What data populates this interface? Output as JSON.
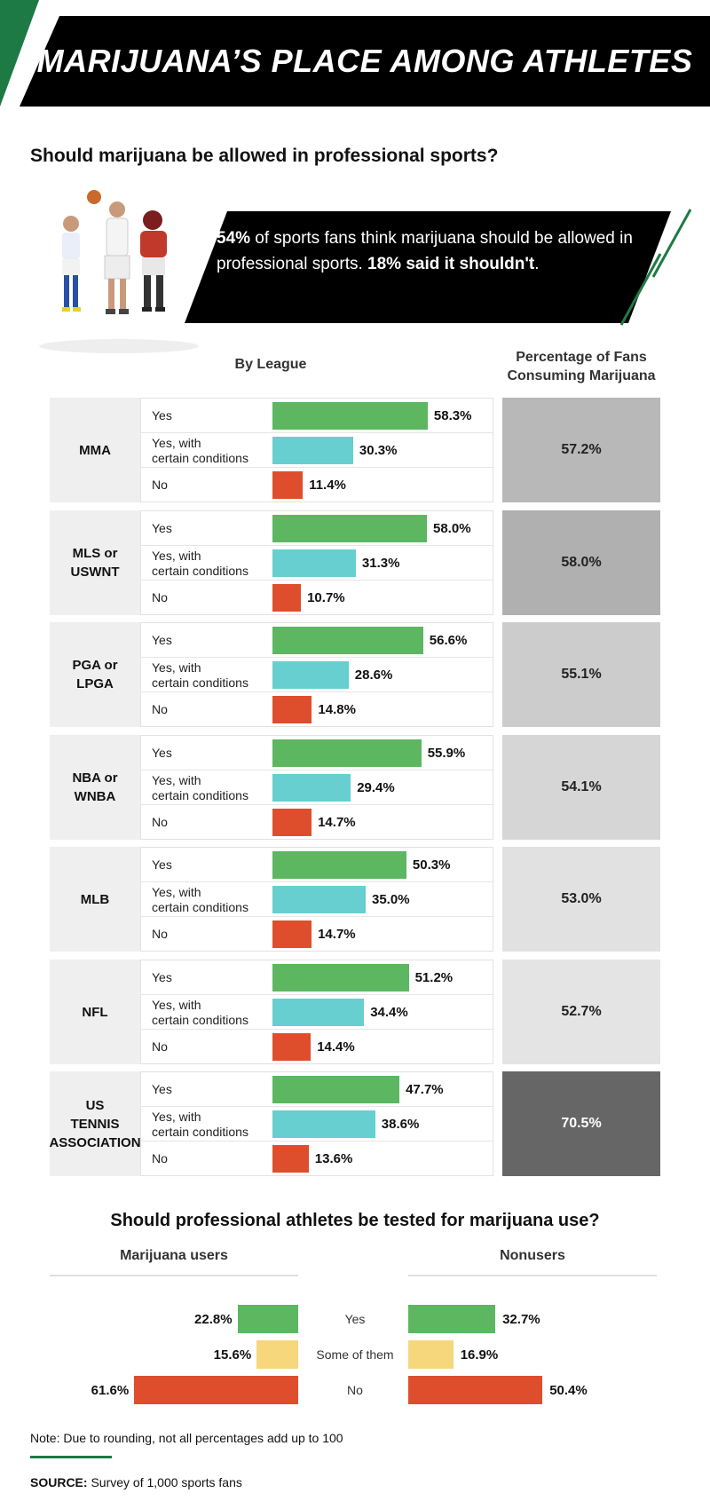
{
  "title": "MARIJUANA’S PLACE AMONG ATHLETES",
  "question1": "Should marijuana be allowed in professional sports?",
  "callout": {
    "p1": "54%",
    "p2": " of sports fans think marijuana should be allowed in professional sports. ",
    "p3": "18% said it shouldn't",
    "p4": "."
  },
  "headers": {
    "by_league": "By League",
    "fan_pct": "Percentage of Fans Consuming Marijuana"
  },
  "row_labels": {
    "yes": "Yes",
    "cond": "Yes, with\ncertain conditions",
    "no": "No"
  },
  "question2": "Should professional athletes be tested for marijuana use?",
  "groups": {
    "users": "Marijuana users",
    "nonusers": "Nonusers"
  },
  "note": "Note: Due to rounding, not all percentages add up to 100",
  "source_label": "SOURCE:",
  "source_text": " Survey of 1,000 sports fans",
  "colors": {
    "yes": "#5cb760",
    "conditions": "#67cfcf",
    "no": "#de4e2d",
    "some": "#f6d77c",
    "accent": "#1e7a45"
  },
  "chart_data": [
    {
      "type": "bar",
      "title": "By League",
      "categories": [
        "MMA",
        "MLS or USWNT",
        "PGA or LPGA",
        "NBA or WNBA",
        "MLB",
        "NFL",
        "US TENNIS ASSOCIATION"
      ],
      "series": [
        {
          "name": "Yes",
          "values": [
            58.3,
            58.0,
            56.6,
            55.9,
            50.3,
            51.2,
            47.7
          ]
        },
        {
          "name": "Yes, with certain conditions",
          "values": [
            30.3,
            31.3,
            28.6,
            29.4,
            35.0,
            34.4,
            38.6
          ]
        },
        {
          "name": "No",
          "values": [
            11.4,
            10.7,
            14.8,
            14.7,
            14.7,
            14.4,
            13.6
          ]
        }
      ],
      "labels": {
        "Yes": [
          "58.3%",
          "58.0%",
          "56.6%",
          "55.9%",
          "50.3%",
          "51.2%",
          "47.7%"
        ],
        "Yes, with certain conditions": [
          "30.3%",
          "31.3%",
          "28.6%",
          "29.4%",
          "35.0%",
          "34.4%",
          "38.6%"
        ],
        "No": [
          "11.4%",
          "10.7%",
          "14.8%",
          "14.7%",
          "14.7%",
          "14.4%",
          "13.6%"
        ]
      }
    },
    {
      "type": "table",
      "title": "Percentage of Fans Consuming Marijuana",
      "categories": [
        "MMA",
        "MLS or USWNT",
        "PGA or LPGA",
        "NBA or WNBA",
        "MLB",
        "NFL",
        "US TENNIS ASSOCIATION"
      ],
      "values": [
        57.2,
        58.0,
        55.1,
        54.1,
        53.0,
        52.7,
        70.5
      ],
      "labels": [
        "57.2%",
        "58.0%",
        "55.1%",
        "54.1%",
        "53.0%",
        "52.7%",
        "70.5%"
      ]
    },
    {
      "type": "bar",
      "title": "Should professional athletes be tested for marijuana use?",
      "categories": [
        "Yes",
        "Some of them",
        "No"
      ],
      "series": [
        {
          "name": "Marijuana users",
          "values": [
            22.8,
            15.6,
            61.6
          ],
          "labels": [
            "22.8%",
            "15.6%",
            "61.6%"
          ]
        },
        {
          "name": "Nonusers",
          "values": [
            32.7,
            16.9,
            50.4
          ],
          "labels": [
            "32.7%",
            "16.9%",
            "50.4%"
          ]
        }
      ]
    }
  ]
}
